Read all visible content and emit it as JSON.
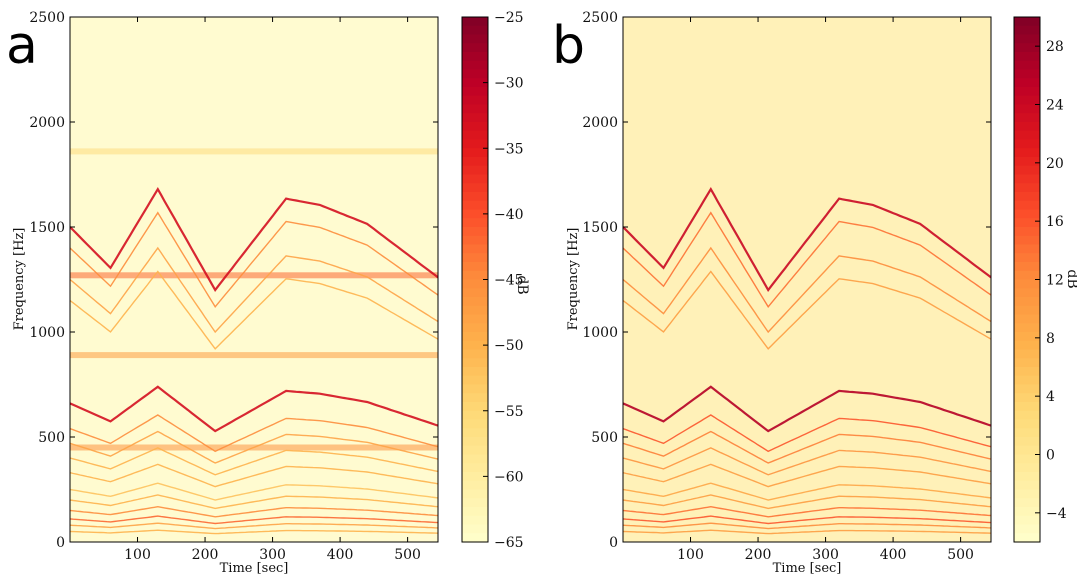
{
  "colormap": [
    "#ffffcc",
    "#ffeda0",
    "#fed976",
    "#feb24c",
    "#fd8d3c",
    "#fc4e2a",
    "#e31a1c",
    "#bd0026",
    "#800026"
  ],
  "chart_data": [
    {
      "type": "heatmap",
      "panel_label": "a",
      "xlabel": "Time [sec]",
      "ylabel": "Frequency [Hz]",
      "colorbar_label": "dB",
      "xlim": [
        0,
        545
      ],
      "ylim": [
        0,
        2500
      ],
      "x_ticks": [
        100,
        200,
        300,
        400,
        500
      ],
      "y_ticks": [
        0,
        500,
        1000,
        1500,
        2000,
        2500
      ],
      "colorbar_range": [
        -65,
        -25
      ],
      "colorbar_ticks": [
        -25,
        -30,
        -35,
        -40,
        -45,
        -50,
        -55,
        -60,
        -65
      ],
      "colorbar_tick_labels": [
        "−25",
        "−30",
        "−35",
        "−40",
        "−45",
        "−50",
        "−55",
        "−60",
        "−65"
      ],
      "bands": [
        {
          "f_center": 1270,
          "level": -42
        },
        {
          "f_center": 1860,
          "level": -56
        },
        {
          "f_center": 890,
          "level": -47
        },
        {
          "f_center": 450,
          "level": -46
        }
      ],
      "tracks": {
        "time": [
          0,
          60,
          130,
          215,
          320,
          370,
          440,
          545
        ],
        "freq_scale": [
          1.0,
          0.87,
          1.12,
          0.8,
          1.09,
          1.07,
          1.01,
          0.84
        ],
        "base_freqs": [
          1500,
          1400,
          1250,
          1150,
          660,
          540,
          470,
          400,
          330,
          250,
          200,
          150,
          110,
          80,
          50
        ],
        "levels": [
          -33,
          -45,
          -48,
          -50,
          -33,
          -45,
          -48,
          -50,
          -50,
          -52,
          -50,
          -45,
          -42,
          -48,
          -50
        ]
      }
    },
    {
      "type": "heatmap",
      "panel_label": "b",
      "xlabel": "Time [sec]",
      "ylabel": "Frequency [Hz]",
      "colorbar_label": "dB",
      "xlim": [
        0,
        545
      ],
      "ylim": [
        0,
        2500
      ],
      "x_ticks": [
        100,
        200,
        300,
        400,
        500
      ],
      "y_ticks": [
        0,
        500,
        1000,
        1500,
        2000,
        2500
      ],
      "colorbar_range": [
        -6,
        30
      ],
      "colorbar_ticks": [
        28,
        24,
        20,
        16,
        12,
        8,
        4,
        0,
        -4
      ],
      "colorbar_tick_labels": [
        "28",
        "24",
        "20",
        "16",
        "12",
        "8",
        "4",
        "0",
        "−4"
      ],
      "bands": [],
      "tracks": {
        "time": [
          0,
          60,
          130,
          215,
          320,
          370,
          440,
          545
        ],
        "freq_scale": [
          1.0,
          0.87,
          1.12,
          0.8,
          1.09,
          1.07,
          1.01,
          0.84
        ],
        "base_freqs": [
          1500,
          1400,
          1250,
          1150,
          660,
          540,
          470,
          400,
          330,
          250,
          200,
          150,
          110,
          80,
          50
        ],
        "levels": [
          24,
          14,
          12,
          10,
          26,
          16,
          13,
          11,
          10,
          9,
          10,
          14,
          16,
          12,
          10
        ]
      }
    }
  ]
}
